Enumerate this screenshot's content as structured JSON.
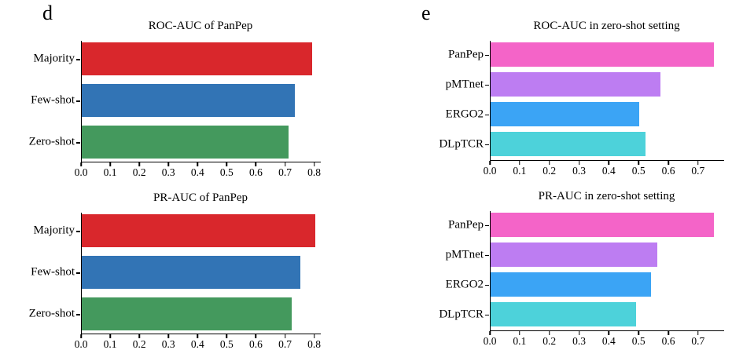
{
  "panels": [
    {
      "letter": "d"
    },
    {
      "letter": "e"
    }
  ],
  "chart_data": [
    {
      "type": "bar",
      "orientation": "horizontal",
      "title": "ROC-AUC of PanPep",
      "categories": [
        "Majority",
        "Few-shot",
        "Zero-shot"
      ],
      "values": [
        0.79,
        0.73,
        0.71
      ],
      "colors": [
        "#d9272c",
        "#3274b5",
        "#44995d"
      ],
      "xlim": [
        0,
        0.82
      ],
      "xticks": [
        0,
        0.1,
        0.2,
        0.3,
        0.4,
        0.5,
        0.6,
        0.7,
        0.8
      ],
      "xtick_labels": [
        "0.0",
        "0.1",
        "0.2",
        "0.3",
        "0.4",
        "0.5",
        "0.6",
        "0.7",
        "0.8"
      ],
      "grid": false,
      "legend": "none"
    },
    {
      "type": "bar",
      "orientation": "horizontal",
      "title": "PR-AUC of PanPep",
      "categories": [
        "Majority",
        "Few-shot",
        "Zero-shot"
      ],
      "values": [
        0.8,
        0.75,
        0.72
      ],
      "colors": [
        "#d9272c",
        "#3274b5",
        "#44995d"
      ],
      "xlim": [
        0,
        0.82
      ],
      "xticks": [
        0,
        0.1,
        0.2,
        0.3,
        0.4,
        0.5,
        0.6,
        0.7,
        0.8
      ],
      "xtick_labels": [
        "0.0",
        "0.1",
        "0.2",
        "0.3",
        "0.4",
        "0.5",
        "0.6",
        "0.7",
        "0.8"
      ],
      "grid": false,
      "legend": "none"
    },
    {
      "type": "bar",
      "orientation": "horizontal",
      "title": "ROC-AUC in zero-shot setting",
      "categories": [
        "PanPep",
        "pMTnet",
        "ERGO2",
        "DLpTCR"
      ],
      "values": [
        0.75,
        0.57,
        0.5,
        0.52
      ],
      "colors": [
        "#f464c8",
        "#bd7df2",
        "#3ba4f5",
        "#4dd2da"
      ],
      "xlim": [
        0,
        0.785
      ],
      "xticks": [
        0,
        0.1,
        0.2,
        0.3,
        0.4,
        0.5,
        0.6,
        0.7
      ],
      "xtick_labels": [
        "0.0",
        "0.1",
        "0.2",
        "0.3",
        "0.4",
        "0.5",
        "0.6",
        "0.7"
      ],
      "grid": false,
      "legend": "none"
    },
    {
      "type": "bar",
      "orientation": "horizontal",
      "title": "PR-AUC in zero-shot setting",
      "categories": [
        "PanPep",
        "pMTnet",
        "ERGO2",
        "DLpTCR"
      ],
      "values": [
        0.75,
        0.56,
        0.54,
        0.49
      ],
      "colors": [
        "#f464c8",
        "#bd7df2",
        "#3ba4f5",
        "#4dd2da"
      ],
      "xlim": [
        0,
        0.785
      ],
      "xticks": [
        0,
        0.1,
        0.2,
        0.3,
        0.4,
        0.5,
        0.6,
        0.7
      ],
      "xtick_labels": [
        "0.0",
        "0.1",
        "0.2",
        "0.3",
        "0.4",
        "0.5",
        "0.6",
        "0.7"
      ],
      "grid": false,
      "legend": "none"
    }
  ]
}
